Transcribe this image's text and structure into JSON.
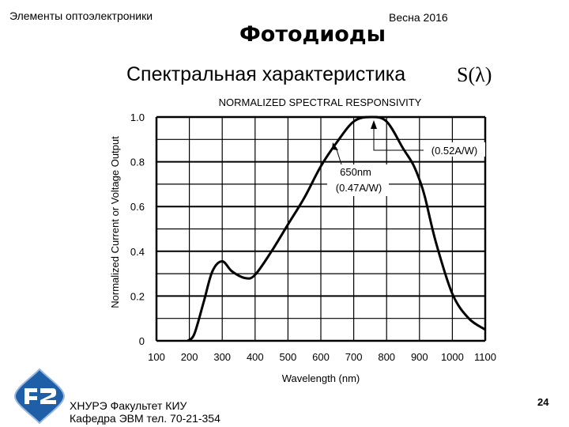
{
  "header": {
    "course": "Элементы оптоэлектроники",
    "semester": "Весна 2016",
    "title": "Фотодиоды",
    "subtitle": "Спектральная характеристика",
    "symbol": "S(λ)"
  },
  "footer": {
    "line1": "ХНУРЭ Факультет КИУ",
    "line2": "Кафедра ЭВМ   тел. 70-21-354",
    "page_number": "24",
    "logo_color": "#1f5fa8"
  },
  "chart_data": {
    "type": "line",
    "title": "NORMALIZED SPECTRAL RESPONSIVITY",
    "xlabel": "Wavelength (nm)",
    "ylabel": "Normalized Current or Voltage Output",
    "xlim": [
      100,
      1100
    ],
    "ylim": [
      0,
      1.0
    ],
    "x_ticks": [
      "100",
      "200",
      "300",
      "400",
      "500",
      "600",
      "700",
      "800",
      "900",
      "1000",
      "1100"
    ],
    "y_ticks": [
      "0",
      "0.2",
      "0.4",
      "0.6",
      "0.8",
      "1.0"
    ],
    "grid": true,
    "x": [
      195,
      215,
      243,
      270,
      300,
      330,
      371,
      400,
      450,
      500,
      550,
      600,
      650,
      700,
      750,
      800,
      850,
      880,
      900,
      917,
      950,
      1000,
      1050,
      1100
    ],
    "y": [
      0,
      0.03,
      0.17,
      0.31,
      0.355,
      0.31,
      0.28,
      0.295,
      0.4,
      0.52,
      0.64,
      0.78,
      0.89,
      0.98,
      1.0,
      0.98,
      0.86,
      0.79,
      0.72,
      0.64,
      0.44,
      0.21,
      0.1,
      0.05
    ],
    "annotations": [
      {
        "text_lines": [
          "650nm",
          "(0.47A/W)"
        ],
        "x": 650,
        "y": 0.89
      },
      {
        "text_lines": [
          "(0.52A/W)"
        ],
        "x": 770,
        "y": 1.0
      }
    ]
  }
}
